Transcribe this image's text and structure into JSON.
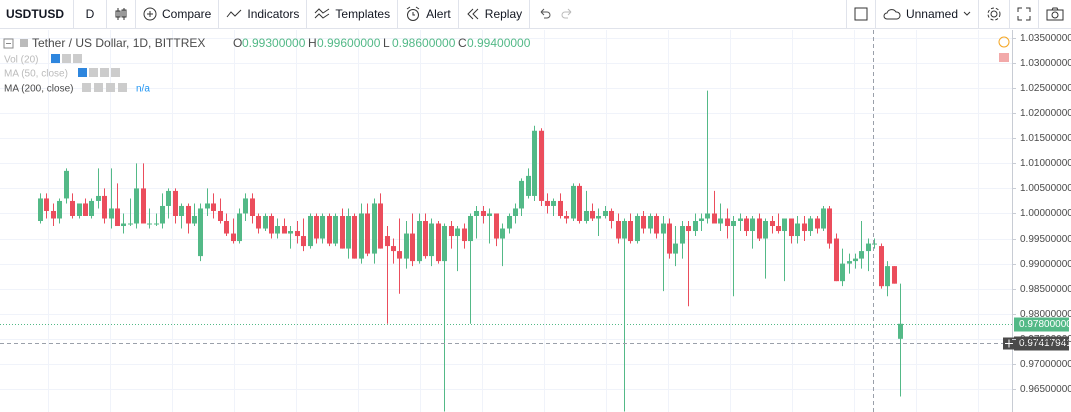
{
  "toolbar": {
    "symbol": "USDTUSD",
    "interval": "D",
    "compare": "Compare",
    "indicators": "Indicators",
    "templates": "Templates",
    "alert": "Alert",
    "replay": "Replay",
    "layout": "Unnamed"
  },
  "legend": {
    "title": "Tether / US Dollar, 1D, BITTREX",
    "ohlc": [
      [
        "O",
        "0.99300000"
      ],
      [
        "H",
        "0.99600000"
      ],
      [
        "L",
        "0.98600000"
      ],
      [
        "C",
        "0.99400000"
      ]
    ],
    "vol": "Vol (20)",
    "ma50": "MA (50, close)",
    "ma200": "MA (200, close)",
    "ma200_value": "n/a"
  },
  "chart_data": {
    "type": "candlestick",
    "up_color": "#53b987",
    "down_color": "#eb4d5c",
    "grid": true,
    "ylim": [
      0.9604,
      1.0366
    ],
    "yticks": [
      {
        "value": 0.965,
        "label": "0.96500000"
      },
      {
        "value": 0.97,
        "label": "0.97000000"
      },
      {
        "value": 0.975,
        "label": "0.97500000"
      },
      {
        "value": 0.98,
        "label": "0.98000000"
      },
      {
        "value": 0.985,
        "label": "0.98500000"
      },
      {
        "value": 0.99,
        "label": "0.99000000"
      },
      {
        "value": 0.995,
        "label": "0.99500000"
      },
      {
        "value": 1.0,
        "label": "1.00000000"
      },
      {
        "value": 1.005,
        "label": "1.00500000"
      },
      {
        "value": 1.01,
        "label": "1.01000000"
      },
      {
        "value": 1.015,
        "label": "1.01500000"
      },
      {
        "value": 1.02,
        "label": "1.02000000"
      },
      {
        "value": 1.025,
        "label": "1.02500000"
      },
      {
        "value": 1.03,
        "label": "1.03000000"
      },
      {
        "value": 1.035,
        "label": "1.03500000"
      }
    ],
    "last_price": {
      "value": 0.978,
      "label": "0.97800000"
    },
    "crosshair_price": {
      "value": 0.97417941,
      "label": "0.97417941"
    },
    "ohlc": [
      [
        0.9985,
        1.004,
        0.998,
        1.003
      ],
      [
        1.003,
        1.004,
        0.999,
        1.0005
      ],
      [
        1.0005,
        1.002,
        0.9975,
        0.999
      ],
      [
        0.999,
        1.003,
        0.998,
        1.0025
      ],
      [
        1.003,
        1.009,
        1.002,
        1.0085
      ],
      [
        1.0025,
        1.004,
        0.999,
        0.9995
      ],
      [
        0.9995,
        1.002,
        0.999,
        1.002
      ],
      [
        1.002,
        1.003,
        0.9995,
        0.9995
      ],
      [
        0.9995,
        1.003,
        0.999,
        1.0025
      ],
      [
        1.0025,
        1.009,
        1.001,
        1.0035
      ],
      [
        1.0035,
        1.005,
        0.998,
        0.999
      ],
      [
        0.999,
        1.009,
        0.997,
        1.001
      ],
      [
        1.001,
        1.006,
        0.9975,
        0.9975
      ],
      [
        0.9975,
        1.0,
        0.996,
        0.998
      ],
      [
        0.998,
        1.003,
        0.9975,
        0.998
      ],
      [
        0.998,
        1.01,
        0.997,
        1.005
      ],
      [
        1.005,
        1.01,
        0.998,
        0.998
      ],
      [
        0.998,
        1.001,
        0.997,
        0.998
      ],
      [
        0.998,
        1.0,
        0.9975,
        0.998
      ],
      [
        0.998,
        1.004,
        0.997,
        1.0015
      ],
      [
        1.0015,
        1.005,
        0.999,
        1.0045
      ],
      [
        1.0045,
        1.005,
        0.998,
        0.9995
      ],
      [
        0.9995,
        1.002,
        0.997,
        1.0015
      ],
      [
        1.0015,
        1.002,
        0.996,
        0.998
      ],
      [
        0.998,
        1.002,
        0.9975,
        0.9995
      ],
      [
        0.9915,
        1.002,
        0.9905,
        1.001
      ],
      [
        1.001,
        1.005,
        0.9995,
        1.002
      ],
      [
        1.002,
        1.004,
        0.999,
        1.0005
      ],
      [
        1.0005,
        1.003,
        0.998,
        0.9985
      ],
      [
        0.9985,
        1.0,
        0.9955,
        0.996
      ],
      [
        0.996,
        0.999,
        0.994,
        0.9945
      ],
      [
        0.9945,
        1.001,
        0.994,
        1.0
      ],
      [
        1.0,
        1.004,
        0.9985,
        1.003
      ],
      [
        1.003,
        1.004,
        0.998,
        0.9995
      ],
      [
        0.9995,
        1.0,
        0.996,
        0.997
      ],
      [
        0.997,
        1.0,
        0.9965,
        0.9995
      ],
      [
        0.9995,
        1.0,
        0.995,
        0.996
      ],
      [
        0.996,
        0.999,
        0.995,
        0.9975
      ],
      [
        0.9975,
        0.999,
        0.996,
        0.996
      ],
      [
        0.996,
        0.9975,
        0.993,
        0.9965
      ],
      [
        0.9965,
        0.9985,
        0.994,
        0.9955
      ],
      [
        0.9955,
        0.999,
        0.9925,
        0.9935
      ],
      [
        0.9935,
        1.0,
        0.993,
        0.9995
      ],
      [
        0.9995,
        1.0,
        0.994,
        0.995
      ],
      [
        0.995,
        1.0,
        0.994,
        0.9995
      ],
      [
        0.9995,
        1.0,
        0.9935,
        0.994
      ],
      [
        0.994,
        1.0,
        0.9935,
        0.9995
      ],
      [
        0.9995,
        1.001,
        0.993,
        0.993
      ],
      [
        0.993,
        1.001,
        0.991,
        0.9995
      ],
      [
        0.9995,
        1.0,
        0.991,
        0.991
      ],
      [
        0.991,
        1.002,
        0.99,
        1.0
      ],
      [
        1.0,
        1.002,
        0.9915,
        0.992
      ],
      [
        0.992,
        1.003,
        0.99,
        1.002
      ],
      [
        1.002,
        1.004,
        0.993,
        0.993
      ],
      [
        0.9955,
        0.9975,
        0.978,
        0.9935
      ],
      [
        0.9935,
        0.995,
        0.99,
        0.9925
      ],
      [
        0.9925,
        0.999,
        0.984,
        0.991
      ],
      [
        0.991,
        0.9985,
        0.989,
        0.996
      ],
      [
        0.996,
        1.0,
        0.9895,
        0.9905
      ],
      [
        0.9905,
        1.0,
        0.99,
        0.9985
      ],
      [
        0.9985,
        1.0,
        0.991,
        0.9915
      ],
      [
        0.9915,
        0.999,
        0.9895,
        0.998
      ],
      [
        0.998,
        0.9985,
        0.99,
        0.9905
      ],
      [
        0.9905,
        0.998,
        0.9605,
        0.9975
      ],
      [
        0.9975,
        0.9985,
        0.993,
        0.9955
      ],
      [
        0.9955,
        0.9975,
        0.9885,
        0.997
      ],
      [
        0.997,
        0.998,
        0.993,
        0.9945
      ],
      [
        0.9945,
        1.0,
        0.978,
        0.9995
      ],
      [
        0.9995,
        1.0015,
        0.995,
        1.0005
      ],
      [
        1.0005,
        1.0015,
        0.998,
        0.9995
      ],
      [
        0.9995,
        1.001,
        0.994,
        1.0
      ],
      [
        1.0,
        1.0,
        0.9935,
        0.995
      ],
      [
        0.995,
        0.998,
        0.9895,
        0.997
      ],
      [
        0.997,
        1.0,
        0.996,
        0.9995
      ],
      [
        0.9995,
        1.002,
        0.998,
        1.001
      ],
      [
        1.001,
        1.007,
        0.9995,
        1.0065
      ],
      [
        1.0035,
        1.009,
        1.003,
        1.0075
      ],
      [
        1.0035,
        1.0175,
        1.0025,
        1.0165
      ],
      [
        1.0165,
        1.017,
        1.0015,
        1.0025
      ],
      [
        1.0025,
        1.004,
        1.0,
        1.0015
      ],
      [
        1.0015,
        1.003,
        0.9995,
        1.0025
      ],
      [
        1.0025,
        1.004,
        0.999,
        0.9995
      ],
      [
        0.9995,
        1.0005,
        0.998,
        0.999
      ],
      [
        0.999,
        1.006,
        0.9985,
        1.0055
      ],
      [
        1.0055,
        1.006,
        0.998,
        0.9985
      ],
      [
        0.9985,
        1.0045,
        0.998,
        1.0005
      ],
      [
        1.0005,
        1.002,
        0.9985,
        0.999
      ],
      [
        0.999,
        1.001,
        0.9955,
        0.9995
      ],
      [
        0.9995,
        1.0015,
        0.999,
        1.0005
      ],
      [
        1.0005,
        1.001,
        0.997,
        0.9985
      ],
      [
        0.9985,
        1.0,
        0.994,
        0.995
      ],
      [
        0.995,
        0.999,
        0.9605,
        0.9985
      ],
      [
        0.9985,
        1.0,
        0.994,
        0.9945
      ],
      [
        0.9945,
        1.0,
        0.994,
        0.9995
      ],
      [
        0.9995,
        1.0005,
        0.996,
        0.997
      ],
      [
        0.997,
        1.0,
        0.996,
        0.9995
      ],
      [
        0.9995,
        1.0,
        0.995,
        0.996
      ],
      [
        0.996,
        0.9995,
        0.9845,
        0.998
      ],
      [
        0.998,
        0.999,
        0.991,
        0.992
      ],
      [
        0.992,
        0.9975,
        0.9895,
        0.994
      ],
      [
        0.994,
        0.9985,
        0.991,
        0.9975
      ],
      [
        0.9975,
        0.9985,
        0.9815,
        0.9965
      ],
      [
        0.9965,
        1.0,
        0.9955,
        0.9985
      ],
      [
        0.9985,
        1.0,
        0.9965,
        0.999
      ],
      [
        0.999,
        1.0245,
        0.998,
        1.0
      ],
      [
        1.0,
        1.0045,
        0.998,
        0.998
      ],
      [
        0.998,
        1.002,
        0.9965,
        0.999
      ],
      [
        0.999,
        1.001,
        0.995,
        0.9975
      ],
      [
        0.9975,
        0.9995,
        0.9835,
        0.9985
      ],
      [
        0.9985,
        1.0,
        0.9965,
        0.999
      ],
      [
        0.999,
        0.9995,
        0.9955,
        0.9965
      ],
      [
        0.9965,
        0.9995,
        0.993,
        0.999
      ],
      [
        0.999,
        1.0,
        0.9945,
        0.995
      ],
      [
        0.995,
        0.999,
        0.987,
        0.9985
      ],
      [
        0.9985,
        0.9995,
        0.996,
        0.9975
      ],
      [
        0.9975,
        1.0,
        0.996,
        0.9965
      ],
      [
        0.9965,
        0.999,
        0.9865,
        0.999
      ],
      [
        0.999,
        0.999,
        0.994,
        0.9955
      ],
      [
        0.9955,
        0.9995,
        0.994,
        0.998
      ],
      [
        0.998,
        0.9995,
        0.9945,
        0.9965
      ],
      [
        0.9965,
        0.9995,
        0.9955,
        0.999
      ],
      [
        0.999,
        0.9995,
        0.996,
        0.997
      ],
      [
        0.997,
        1.0015,
        0.9965,
        1.001
      ],
      [
        1.001,
        1.0015,
        0.993,
        0.994
      ],
      [
        0.995,
        0.996,
        0.9865,
        0.9865
      ],
      [
        0.9865,
        0.993,
        0.9855,
        0.99
      ],
      [
        0.99,
        0.992,
        0.988,
        0.9905
      ],
      [
        0.9905,
        0.992,
        0.989,
        0.991
      ],
      [
        0.991,
        0.9985,
        0.989,
        0.9925
      ],
      [
        0.9925,
        0.995,
        0.9885,
        0.994
      ],
      [
        0.994,
        0.995,
        0.993,
        0.994
      ],
      [
        0.9935,
        0.994,
        0.985,
        0.9855
      ],
      [
        0.9855,
        0.9905,
        0.9835,
        0.9895
      ],
      [
        0.9895,
        0.9895,
        0.986,
        0.986
      ],
      [
        0.975,
        0.986,
        0.9635,
        0.978
      ]
    ]
  }
}
